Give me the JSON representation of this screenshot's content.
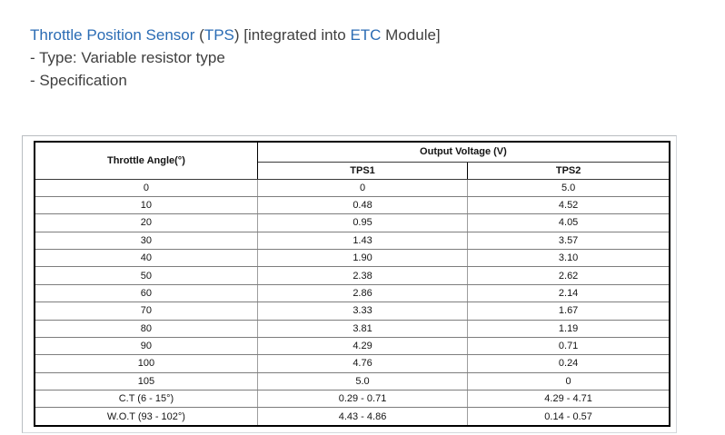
{
  "heading": {
    "segments": [
      {
        "text": "Throttle Position Sensor",
        "color": "#2b6cb4"
      },
      {
        "text": " (",
        "color": "#3f3f3f"
      },
      {
        "text": "TPS",
        "color": "#2b6cb4"
      },
      {
        "text": ") [integrated into ",
        "color": "#3f3f3f"
      },
      {
        "text": "ETC",
        "color": "#2b6cb4"
      },
      {
        "text": " Module]",
        "color": "#3f3f3f"
      }
    ],
    "type_line": "- Type: Variable resistor type",
    "spec_line": "- Specification"
  },
  "colors": {
    "link_blue": "#2b6cb4",
    "text_dark": "#3f3f3f",
    "table_border": "#000000",
    "grid_line": "#7d7d7d",
    "frame_gray": "#b9bdc1"
  },
  "table": {
    "header": {
      "angle": "Throttle Angle(°)",
      "output_voltage": "Output Voltage (V)",
      "tps1": "TPS1",
      "tps2": "TPS2"
    },
    "rows": [
      [
        "0",
        "0",
        "5.0"
      ],
      [
        "10",
        "0.48",
        "4.52"
      ],
      [
        "20",
        "0.95",
        "4.05"
      ],
      [
        "30",
        "1.43",
        "3.57"
      ],
      [
        "40",
        "1.90",
        "3.10"
      ],
      [
        "50",
        "2.38",
        "2.62"
      ],
      [
        "60",
        "2.86",
        "2.14"
      ],
      [
        "70",
        "3.33",
        "1.67"
      ],
      [
        "80",
        "3.81",
        "1.19"
      ],
      [
        "90",
        "4.29",
        "0.71"
      ],
      [
        "100",
        "4.76",
        "0.24"
      ],
      [
        "105",
        "5.0",
        "0"
      ],
      [
        "C.T (6 - 15°)",
        "0.29 - 0.71",
        "4.29 - 4.71"
      ],
      [
        "W.O.T (93 - 102°)",
        "4.43 - 4.86",
        "0.14 - 0.57"
      ]
    ]
  }
}
